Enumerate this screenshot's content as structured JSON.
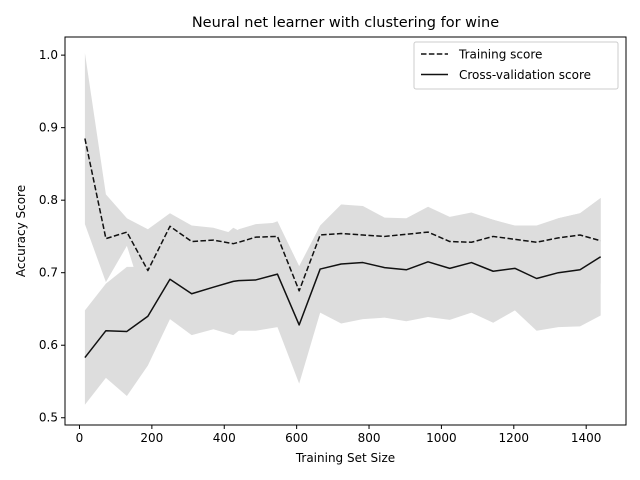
{
  "chart_data": {
    "type": "line",
    "title": "Neural net learner with clustering for wine",
    "xlabel": "Training Set Size",
    "ylabel": "Accuracy Score",
    "xlim": [
      -40,
      1510
    ],
    "ylim": [
      0.49,
      1.025
    ],
    "xticks": [
      0,
      200,
      400,
      600,
      800,
      1000,
      1200,
      1400
    ],
    "yticks": [
      0.5,
      0.6,
      0.7,
      0.8,
      0.9,
      1.0
    ],
    "ytick_labels": [
      "0.5",
      "0.6",
      "0.7",
      "0.8",
      "0.9",
      "1.0"
    ],
    "grid": false,
    "legend_position": "top-right",
    "x": [
      15,
      73,
      131,
      189,
      250,
      310,
      370,
      425,
      440,
      487,
      547,
      607,
      665,
      723,
      783,
      843,
      903,
      963,
      1023,
      1083,
      1143,
      1203,
      1263,
      1323,
      1383,
      1440
    ],
    "series": [
      {
        "name": "Training score",
        "style": "dashed",
        "color": "#111111",
        "values": [
          0.885,
          0.747,
          0.756,
          0.703,
          0.764,
          0.743,
          0.745,
          0.74,
          0.742,
          0.749,
          0.75,
          0.675,
          0.752,
          0.754,
          0.752,
          0.75,
          0.753,
          0.756,
          0.743,
          0.742,
          0.75,
          0.746,
          0.742,
          0.748,
          0.752,
          0.744
        ],
        "band_upper": [
          1.003,
          0.808,
          0.775,
          0.76,
          0.782,
          0.765,
          0.762,
          0.754,
          0.76,
          0.767,
          0.769,
          0.707,
          0.76,
          0.794,
          0.79,
          0.774,
          0.774,
          0.79,
          0.775,
          0.782,
          0.773,
          0.765,
          0.765,
          0.775,
          0.782,
          0.803
        ],
        "band_lower": [
          0.767,
          0.687,
          0.737,
          0.646,
          0.746,
          0.72,
          0.728,
          0.726,
          0.724,
          0.731,
          0.731,
          0.643,
          0.744,
          0.714,
          0.714,
          0.726,
          0.732,
          0.722,
          0.711,
          0.702,
          0.727,
          0.727,
          0.719,
          0.721,
          0.722,
          0.685
        ]
      },
      {
        "name": "Cross-validation score",
        "style": "solid",
        "color": "#111111",
        "values": [
          0.583,
          0.62,
          0.619,
          0.64,
          0.691,
          0.671,
          0.68,
          0.688,
          0.689,
          0.69,
          0.698,
          0.628,
          0.705,
          0.712,
          0.714,
          0.707,
          0.704,
          0.715,
          0.706,
          0.714,
          0.702,
          0.706,
          0.692,
          0.7,
          0.704,
          0.722
        ],
        "band_upper": [
          0.648,
          0.685,
          0.708,
          0.708,
          0.746,
          0.728,
          0.738,
          0.762,
          0.758,
          0.76,
          0.771,
          0.709,
          0.765,
          0.794,
          0.792,
          0.776,
          0.775,
          0.791,
          0.777,
          0.783,
          0.773,
          0.764,
          0.764,
          0.775,
          0.782,
          0.803
        ],
        "band_lower": [
          0.518,
          0.555,
          0.53,
          0.572,
          0.636,
          0.614,
          0.622,
          0.614,
          0.62,
          0.62,
          0.625,
          0.547,
          0.645,
          0.63,
          0.636,
          0.638,
          0.633,
          0.639,
          0.635,
          0.645,
          0.631,
          0.648,
          0.62,
          0.625,
          0.626,
          0.641
        ]
      }
    ],
    "band_color": "#dddddd"
  }
}
